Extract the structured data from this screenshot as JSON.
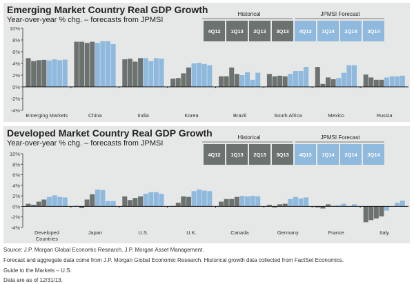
{
  "chart_data": [
    {
      "type": "bar",
      "title": "Emerging Market Country Real GDP Growth",
      "subtitle": "Year-over-year % chg. – forecasts from JPMSI",
      "ylim": [
        -4,
        10
      ],
      "yticks": [
        "-4%",
        "-2%",
        "0%",
        "2%",
        "4%",
        "6%",
        "8%",
        "10%"
      ],
      "grid": false,
      "periods": [
        "4Q12",
        "1Q13",
        "2Q13",
        "3Q13",
        "4Q13",
        "1Q14",
        "2Q14",
        "3Q14"
      ],
      "period_groups": {
        "historical": "Historical",
        "forecast": "JPMSI Forecast"
      },
      "categories": [
        "Emerging Markets",
        "China",
        "India",
        "Korea",
        "Brazil",
        "South Africa",
        "Mexico",
        "Russia"
      ],
      "values": [
        [
          4.9,
          4.4,
          4.55,
          4.6,
          4.5,
          4.7,
          4.55,
          4.65
        ],
        [
          7.7,
          7.7,
          7.5,
          7.7,
          7.5,
          7.8,
          7.8,
          7.3
        ],
        [
          4.7,
          4.8,
          4.3,
          4.9,
          4.9,
          4.4,
          4.9,
          4.8
        ],
        [
          1.4,
          1.5,
          2.3,
          3.3,
          4.0,
          4.1,
          3.9,
          3.7
        ],
        [
          1.8,
          1.8,
          3.3,
          2.2,
          2.0,
          2.5,
          1.2,
          2.4
        ],
        [
          2.2,
          1.8,
          1.9,
          1.8,
          2.2,
          2.7,
          2.7,
          3.4
        ],
        [
          3.4,
          0.5,
          1.6,
          1.3,
          1.5,
          2.4,
          3.7,
          3.7
        ],
        [
          2.1,
          1.6,
          1.2,
          1.2,
          1.6,
          1.8,
          1.8,
          1.9
        ]
      ]
    },
    {
      "type": "bar",
      "title": "Developed Market Country Real GDP Growth",
      "subtitle": "Year-over-year % chg. – forecasts from JPMSI",
      "ylim": [
        -4,
        10
      ],
      "yticks": [
        "-4%",
        "-2%",
        "0%",
        "2%",
        "4%",
        "6%",
        "8%",
        "10%"
      ],
      "grid": false,
      "periods": [
        "4Q12",
        "1Q13",
        "2Q13",
        "3Q13",
        "4Q13",
        "1Q14",
        "2Q14",
        "3Q14"
      ],
      "period_groups": {
        "historical": "Historical",
        "forecast": "JPMSI Forecast"
      },
      "categories": [
        "Developed Countries",
        "Japan",
        "U.S.",
        "U.K.",
        "Canada",
        "Germany",
        "France",
        "Italy"
      ],
      "values": [
        [
          0.5,
          0.3,
          0.9,
          1.3,
          1.8,
          2.1,
          1.8,
          1.7
        ],
        [
          0.1,
          -0.3,
          1.3,
          2.3,
          3.2,
          3.1,
          1.0,
          1.0
        ],
        [
          1.9,
          1.2,
          1.6,
          1.9,
          2.4,
          2.7,
          2.7,
          2.4
        ],
        [
          0.1,
          0.7,
          1.9,
          1.8,
          2.9,
          3.2,
          3.0,
          2.9
        ],
        [
          0.9,
          1.4,
          1.4,
          1.8,
          2.0,
          1.9,
          2.0,
          1.9
        ],
        [
          0.3,
          -0.2,
          0.4,
          0.5,
          1.4,
          1.8,
          1.5,
          1.7
        ],
        [
          -0.2,
          -0.4,
          0.4,
          0.1,
          0.2,
          0.5,
          0.0,
          0.4
        ],
        [
          -3.0,
          -2.6,
          -2.3,
          -1.9,
          -0.8,
          0.0,
          0.7,
          1.1
        ]
      ]
    }
  ],
  "colors": {
    "historical": "#6c726f",
    "forecast": "#8fb9dd",
    "panel": "#e6e7e7"
  },
  "footer": [
    "Source: J.P. Morgan Global Economic Research, J.P. Morgan Asset Management.",
    "Forecast and aggregate data come from J.P. Morgan Global Economic Research. Historical growth data collected from FactSet Economics.",
    "Guide to the Markets – U.S.",
    "Data are as of 12/31/13."
  ]
}
